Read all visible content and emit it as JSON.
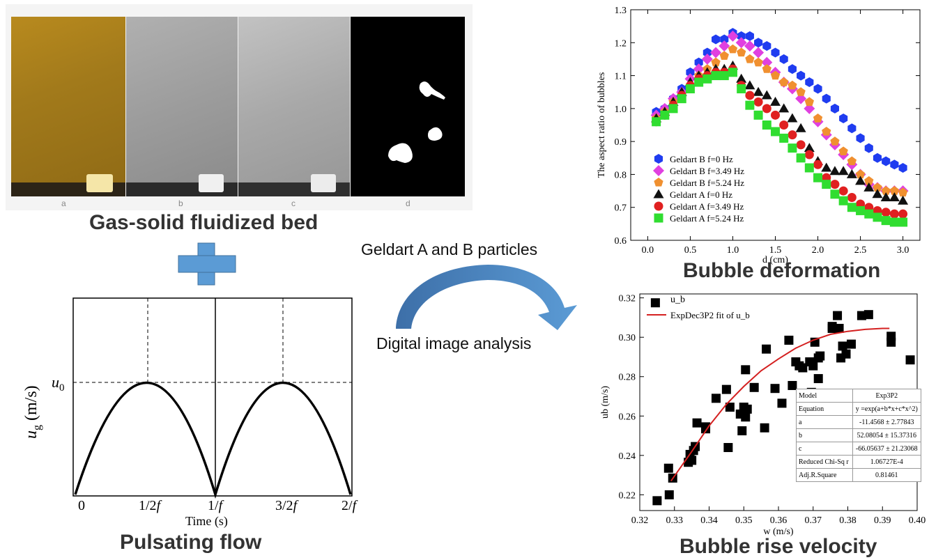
{
  "photo_strip": {
    "panels": [
      "a",
      "b",
      "c",
      "d"
    ],
    "caption": "Gas-solid fluidized bed"
  },
  "pulse": {
    "caption": "Pulsating flow",
    "ylabel_main": "u",
    "ylabel_sub": "g",
    "ylabel_unit": " (m/s)",
    "u0": "u",
    "u0_sub": "0",
    "xlabel": "Time (s)",
    "ticks": [
      "0",
      "1/2",
      "1/",
      "3/2",
      "2/"
    ],
    "tick_f": "f"
  },
  "arrow": {
    "top_text": "Geldart A and B particles",
    "bottom_text": "Digital image analysis"
  },
  "chart_data": [
    {
      "type": "scatter",
      "title": "Bubble deformation",
      "xlabel": "d (cm)",
      "ylabel": "The aspect ratio of bubbles",
      "xlim": [
        -0.2,
        3.2
      ],
      "ylim": [
        0.6,
        1.3
      ],
      "xticks": [
        "0.0",
        "0.5",
        "1.0",
        "1.5",
        "2.0",
        "2.5",
        "3.0"
      ],
      "yticks": [
        "0.6",
        "0.7",
        "0.8",
        "0.9",
        "1.0",
        "1.1",
        "1.2",
        "1.3"
      ],
      "legend_position": "lower-left",
      "x": [
        0.1,
        0.2,
        0.3,
        0.4,
        0.5,
        0.6,
        0.7,
        0.8,
        0.9,
        1.0,
        1.1,
        1.2,
        1.3,
        1.4,
        1.5,
        1.6,
        1.7,
        1.8,
        1.9,
        2.0,
        2.1,
        2.2,
        2.3,
        2.4,
        2.5,
        2.6,
        2.7,
        2.8,
        2.9,
        3.0
      ],
      "series": [
        {
          "name": "Geldart B f=0 Hz",
          "color": "#1f3cf0",
          "marker": "hexagon",
          "values": [
            0.99,
            1.0,
            1.03,
            1.06,
            1.11,
            1.14,
            1.17,
            1.21,
            1.21,
            1.23,
            1.22,
            1.22,
            1.2,
            1.19,
            1.17,
            1.15,
            1.12,
            1.1,
            1.08,
            1.06,
            1.03,
            1.0,
            0.97,
            0.94,
            0.91,
            0.88,
            0.85,
            0.84,
            0.83,
            0.82
          ]
        },
        {
          "name": "Geldart B f=3.49 Hz",
          "color": "#e040e0",
          "marker": "diamond",
          "values": [
            0.98,
            1.0,
            1.03,
            1.05,
            1.09,
            1.12,
            1.15,
            1.17,
            1.19,
            1.22,
            1.2,
            1.19,
            1.17,
            1.14,
            1.11,
            1.08,
            1.06,
            1.03,
            1.0,
            0.96,
            0.92,
            0.89,
            0.86,
            0.83,
            0.8,
            0.77,
            0.76,
            0.75,
            0.75,
            0.75
          ]
        },
        {
          "name": "Geldart B f=5.24 Hz",
          "color": "#f09030",
          "marker": "pentagon",
          "values": [
            0.97,
            0.99,
            1.02,
            1.04,
            1.07,
            1.1,
            1.12,
            1.14,
            1.16,
            1.18,
            1.17,
            1.15,
            1.14,
            1.12,
            1.1,
            1.08,
            1.07,
            1.05,
            1.02,
            0.97,
            0.93,
            0.9,
            0.87,
            0.84,
            0.8,
            0.78,
            0.76,
            0.75,
            0.75,
            0.745
          ]
        },
        {
          "name": "Geldart A f=0 Hz",
          "color": "#111111",
          "marker": "triangle",
          "values": [
            0.97,
            0.99,
            1.02,
            1.05,
            1.08,
            1.1,
            1.11,
            1.12,
            1.12,
            1.13,
            1.09,
            1.07,
            1.05,
            1.04,
            1.02,
            1.0,
            0.97,
            0.94,
            0.88,
            0.84,
            0.82,
            0.81,
            0.81,
            0.8,
            0.78,
            0.76,
            0.74,
            0.73,
            0.73,
            0.72
          ]
        },
        {
          "name": "Geldart A f=3.49 Hz",
          "color": "#e02020",
          "marker": "circle",
          "values": [
            0.96,
            0.98,
            1.01,
            1.04,
            1.07,
            1.09,
            1.1,
            1.11,
            1.11,
            1.12,
            1.07,
            1.04,
            1.02,
            1.0,
            0.98,
            0.95,
            0.92,
            0.89,
            0.86,
            0.83,
            0.79,
            0.77,
            0.75,
            0.73,
            0.71,
            0.7,
            0.69,
            0.685,
            0.68,
            0.68
          ]
        },
        {
          "name": "Geldart A f=5.24 Hz",
          "color": "#30dd30",
          "marker": "square",
          "values": [
            0.96,
            0.98,
            1.0,
            1.03,
            1.06,
            1.08,
            1.09,
            1.1,
            1.1,
            1.11,
            1.06,
            1.01,
            0.98,
            0.95,
            0.93,
            0.91,
            0.88,
            0.85,
            0.82,
            0.79,
            0.77,
            0.74,
            0.72,
            0.7,
            0.69,
            0.68,
            0.67,
            0.66,
            0.655,
            0.655
          ]
        }
      ]
    },
    {
      "type": "scatter",
      "title": "Bubble rise velocity",
      "xlabel": "w (m/s)",
      "ylabel": "ub (m/s)",
      "xlim": [
        0.32,
        0.4
      ],
      "ylim": [
        0.212,
        0.322
      ],
      "xticks": [
        "0.32",
        "0.33",
        "0.34",
        "0.35",
        "0.36",
        "0.37",
        "0.38",
        "0.39",
        "0.40"
      ],
      "yticks": [
        "0.22",
        "0.24",
        "0.26",
        "0.28",
        "0.30",
        "0.32"
      ],
      "legend": [
        "u_b",
        "ExpDec3P2 fit of u_b"
      ],
      "points": [
        [
          0.325,
          0.217
        ],
        [
          0.3285,
          0.22
        ],
        [
          0.3283,
          0.2335
        ],
        [
          0.3295,
          0.2285
        ],
        [
          0.334,
          0.2365
        ],
        [
          0.335,
          0.2375
        ],
        [
          0.3345,
          0.2405
        ],
        [
          0.3355,
          0.2425
        ],
        [
          0.336,
          0.2445
        ],
        [
          0.3365,
          0.2565
        ],
        [
          0.339,
          0.2535
        ],
        [
          0.339,
          0.2545
        ],
        [
          0.342,
          0.269
        ],
        [
          0.345,
          0.2735
        ],
        [
          0.3455,
          0.244
        ],
        [
          0.346,
          0.2645
        ],
        [
          0.349,
          0.261
        ],
        [
          0.3495,
          0.2525
        ],
        [
          0.35,
          0.2645
        ],
        [
          0.3505,
          0.2595
        ],
        [
          0.351,
          0.2635
        ],
        [
          0.3505,
          0.2835
        ],
        [
          0.353,
          0.2745
        ],
        [
          0.356,
          0.254
        ],
        [
          0.3565,
          0.294
        ],
        [
          0.359,
          0.274
        ],
        [
          0.361,
          0.2665
        ],
        [
          0.363,
          0.2985
        ],
        [
          0.364,
          0.2755
        ],
        [
          0.365,
          0.2875
        ],
        [
          0.366,
          0.2855
        ],
        [
          0.367,
          0.2845
        ],
        [
          0.368,
          0.2695
        ],
        [
          0.369,
          0.2875
        ],
        [
          0.3695,
          0.272
        ],
        [
          0.37,
          0.2855
        ],
        [
          0.3705,
          0.2975
        ],
        [
          0.3715,
          0.279
        ],
        [
          0.3715,
          0.2895
        ],
        [
          0.372,
          0.2905
        ],
        [
          0.3755,
          0.3045
        ],
        [
          0.3755,
          0.3055
        ],
        [
          0.377,
          0.311
        ],
        [
          0.3775,
          0.3045
        ],
        [
          0.378,
          0.2895
        ],
        [
          0.3785,
          0.2955
        ],
        [
          0.3795,
          0.2915
        ],
        [
          0.381,
          0.2965
        ],
        [
          0.384,
          0.311
        ],
        [
          0.386,
          0.3115
        ],
        [
          0.3925,
          0.2975
        ],
        [
          0.3925,
          0.3005
        ],
        [
          0.398,
          0.2885
        ],
        [
          0.3245,
          0.3175
        ]
      ],
      "fit_curve": [
        [
          0.329,
          0.227
        ],
        [
          0.335,
          0.242
        ],
        [
          0.34,
          0.255
        ],
        [
          0.345,
          0.266
        ],
        [
          0.35,
          0.275
        ],
        [
          0.355,
          0.283
        ],
        [
          0.36,
          0.289
        ],
        [
          0.365,
          0.2945
        ],
        [
          0.37,
          0.2985
        ],
        [
          0.375,
          0.3015
        ],
        [
          0.38,
          0.303
        ],
        [
          0.385,
          0.304
        ],
        [
          0.39,
          0.3045
        ],
        [
          0.392,
          0.3045
        ]
      ],
      "fit_color": "#d42020",
      "table": {
        "rows": [
          [
            "Model",
            "Exp3P2"
          ],
          [
            "Equation",
            "y =exp(a+b*x+c*x^2)"
          ],
          [
            "a",
            "-11.4568 ± 2.77843"
          ],
          [
            "b",
            "52.08054 ± 15.37316"
          ],
          [
            "c",
            "-66.05637 ± 21.23068"
          ],
          [
            "Reduced Chi-Sq r",
            "1.06727E-4"
          ],
          [
            "Adj.R.Square",
            "0.81461"
          ]
        ]
      }
    }
  ]
}
